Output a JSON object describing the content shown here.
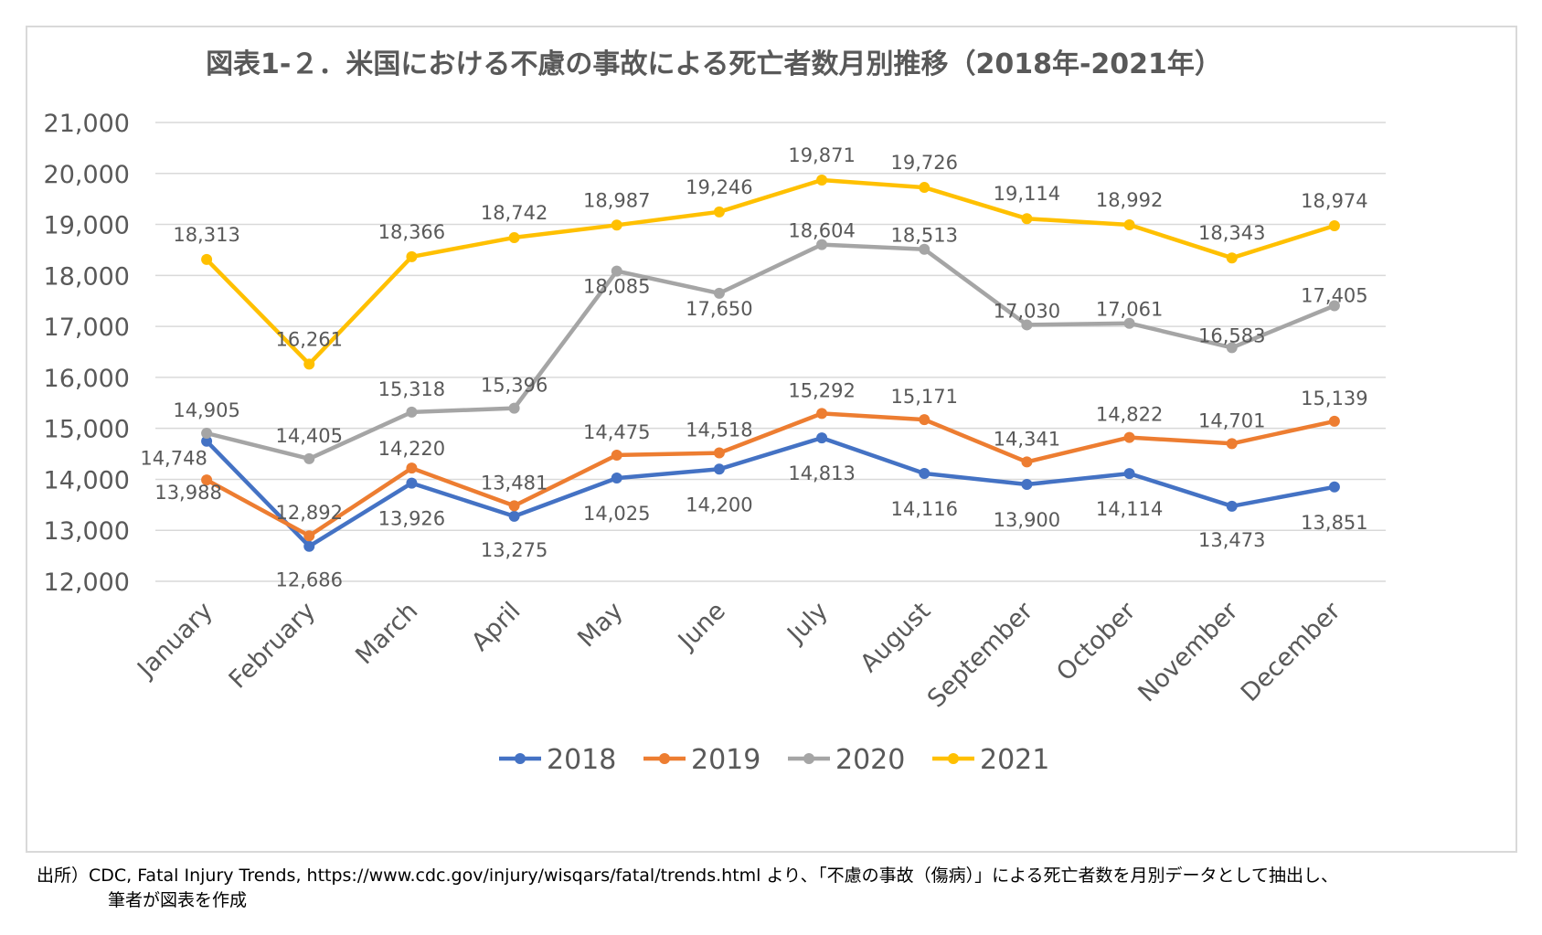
{
  "chart_data": {
    "type": "line",
    "title": "図表1-２．米国における不慮の事故による死亡者数月別推移（2018年-2021年）",
    "categories": [
      "January",
      "February",
      "March",
      "April",
      "May",
      "June",
      "July",
      "August",
      "September",
      "October",
      "November",
      "December"
    ],
    "ylim": [
      12000,
      21000
    ],
    "yticks": [
      "12,000",
      "13,000",
      "14,000",
      "15,000",
      "16,000",
      "17,000",
      "18,000",
      "19,000",
      "20,000",
      "21,000"
    ],
    "grid": true,
    "legend_position": "bottom",
    "series": [
      {
        "name": "2018",
        "color": "#4472C4",
        "values": [
          14748,
          12686,
          13926,
          13275,
          14025,
          14200,
          14813,
          14116,
          13900,
          14114,
          13473,
          13851
        ],
        "labels": [
          "14,748",
          "12,686",
          "13,926",
          "13,275",
          "14,025",
          "14,200",
          "14,813",
          "14,116",
          "13,900",
          "14,114",
          "13,473",
          "13,851"
        ]
      },
      {
        "name": "2019",
        "color": "#ED7D31",
        "values": [
          13988,
          12892,
          14220,
          13481,
          14475,
          14518,
          15292,
          15171,
          14341,
          14822,
          14701,
          15139
        ],
        "labels": [
          "13,988",
          "12,892",
          "14,220",
          "13,481",
          "14,475",
          "14,518",
          "15,292",
          "15,171",
          "14,341",
          "14,822",
          "14,701",
          "15,139"
        ]
      },
      {
        "name": "2020",
        "color": "#A5A5A5",
        "values": [
          14905,
          14405,
          15318,
          15396,
          18085,
          17650,
          18604,
          18513,
          17030,
          17061,
          16583,
          17405
        ],
        "labels": [
          "14,905",
          "14,405",
          "15,318",
          "15,396",
          "18,085",
          "17,650",
          "18,604",
          "18,513",
          "17,030",
          "17,061",
          "16,583",
          "17,405"
        ]
      },
      {
        "name": "2021",
        "color": "#FFC000",
        "values": [
          18313,
          16261,
          18366,
          18742,
          18987,
          19246,
          19871,
          19726,
          19114,
          18992,
          18343,
          18974
        ],
        "labels": [
          "18,313",
          "16,261",
          "18,366",
          "18,742",
          "18,987",
          "19,246",
          "19,871",
          "19,726",
          "19,114",
          "18,992",
          "18,343",
          "18,974"
        ]
      }
    ]
  },
  "source": {
    "line1": "出所）CDC, Fatal Injury Trends,  https://www.cdc.gov/injury/wisqars/fatal/trends.html  より､「不慮の事故（傷病）」による死亡者数を月別データとして抽出し、",
    "line2": "筆者が図表を作成"
  }
}
